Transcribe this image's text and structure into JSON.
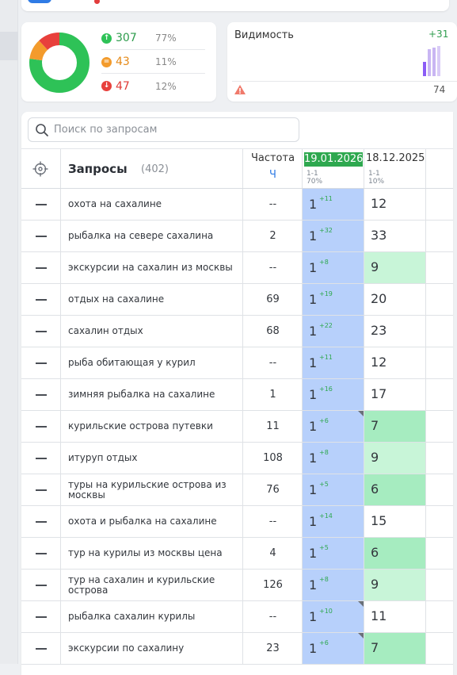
{
  "stats": {
    "up": {
      "value": "307",
      "pct": "77%"
    },
    "eq": {
      "value": "43",
      "pct": "11%"
    },
    "down": {
      "value": "47",
      "pct": "12%"
    },
    "donut": [
      {
        "name": "up",
        "value": 77,
        "color": "#2ec257"
      },
      {
        "name": "eq",
        "value": 11,
        "color": "#f39b2c"
      },
      {
        "name": "down",
        "value": 12,
        "color": "#e8403c"
      }
    ]
  },
  "visibility": {
    "title": "Видимость",
    "delta": "+31",
    "bottom_value": "74",
    "bars": [
      {
        "value": 0.45,
        "color": "#8b5cf6"
      },
      {
        "value": 0.85,
        "color": "#c9b6f3"
      },
      {
        "value": 0.9,
        "color": "#c9b6f3"
      },
      {
        "value": 0.95,
        "color": "#d9cbf7"
      }
    ]
  },
  "search": {
    "placeholder": "Поиск по запросам"
  },
  "header": {
    "queries_label": "Запросы",
    "queries_count": "(402)",
    "freq_label": "Частота",
    "freq_sub": "Ч",
    "date1": "19.01.2026",
    "date1_sub1": "1-1",
    "date1_sub2": "70%",
    "date2": "18.12.2025",
    "date2_sub1": "1-1",
    "date2_sub2": "10%"
  },
  "rows": [
    {
      "query": "охота на сахалине",
      "freq": "--",
      "pos": "1",
      "delta": "+11",
      "corner": false,
      "prev": "12",
      "prev_bg": "#ffffff"
    },
    {
      "query": "рыбалка на севере сахалина",
      "freq": "2",
      "pos": "1",
      "delta": "+32",
      "corner": false,
      "prev": "33",
      "prev_bg": "#ffffff"
    },
    {
      "query": "экскурсии на сахалин из москвы",
      "freq": "--",
      "pos": "1",
      "delta": "+8",
      "corner": false,
      "prev": "9",
      "prev_bg": "#c8f5d8"
    },
    {
      "query": "отдых на сахалине",
      "freq": "69",
      "pos": "1",
      "delta": "+19",
      "corner": false,
      "prev": "20",
      "prev_bg": "#ffffff"
    },
    {
      "query": "сахалин отдых",
      "freq": "68",
      "pos": "1",
      "delta": "+22",
      "corner": false,
      "prev": "23",
      "prev_bg": "#ffffff"
    },
    {
      "query": "рыба обитающая у курил",
      "freq": "--",
      "pos": "1",
      "delta": "+11",
      "corner": false,
      "prev": "12",
      "prev_bg": "#ffffff"
    },
    {
      "query": "зимняя рыбалка на сахалине",
      "freq": "1",
      "pos": "1",
      "delta": "+16",
      "corner": false,
      "prev": "17",
      "prev_bg": "#ffffff"
    },
    {
      "query": "курильские острова путевки",
      "freq": "11",
      "pos": "1",
      "delta": "+6",
      "corner": true,
      "prev": "7",
      "prev_bg": "#a6ecc0"
    },
    {
      "query": "итуруп отдых",
      "freq": "108",
      "pos": "1",
      "delta": "+8",
      "corner": false,
      "prev": "9",
      "prev_bg": "#c8f5d8"
    },
    {
      "query": "туры на курильские острова из москвы",
      "freq": "76",
      "pos": "1",
      "delta": "+5",
      "corner": false,
      "prev": "6",
      "prev_bg": "#a6ecc0"
    },
    {
      "query": "охота и рыбалка на сахалине",
      "freq": "--",
      "pos": "1",
      "delta": "+14",
      "corner": false,
      "prev": "15",
      "prev_bg": "#ffffff"
    },
    {
      "query": "тур на курилы из москвы цена",
      "freq": "4",
      "pos": "1",
      "delta": "+5",
      "corner": false,
      "prev": "6",
      "prev_bg": "#a6ecc0"
    },
    {
      "query": "тур на сахалин и курильские острова",
      "freq": "126",
      "pos": "1",
      "delta": "+8",
      "corner": false,
      "prev": "9",
      "prev_bg": "#c8f5d8"
    },
    {
      "query": "рыбалка сахалин курилы",
      "freq": "--",
      "pos": "1",
      "delta": "+10",
      "corner": true,
      "prev": "11",
      "prev_bg": "#ffffff"
    },
    {
      "query": "экскурсии по сахалину",
      "freq": "23",
      "pos": "1",
      "delta": "+6",
      "corner": true,
      "prev": "7",
      "prev_bg": "#a6ecc0"
    }
  ]
}
